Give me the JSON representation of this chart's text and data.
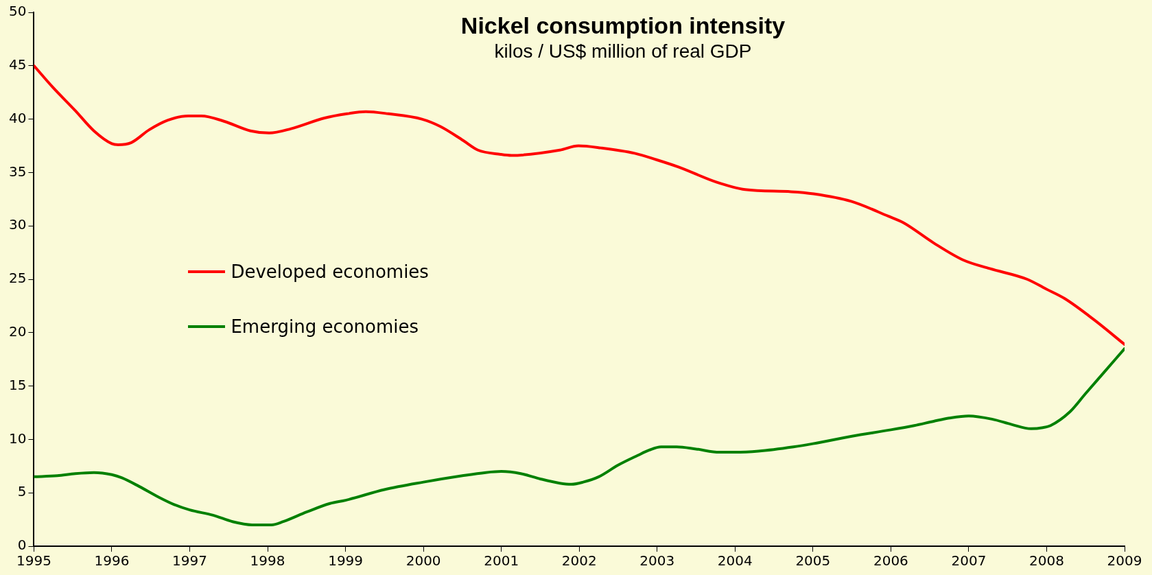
{
  "chart_data": {
    "type": "line",
    "title": "Nickel consumption intensity",
    "subtitle": "kilos / US$ million of real GDP",
    "xlim": [
      1995,
      2009
    ],
    "xticks": [
      1995,
      1996,
      1997,
      1998,
      1999,
      2000,
      2001,
      2002,
      2003,
      2004,
      2005,
      2006,
      2007,
      2008,
      2009
    ],
    "ylim": [
      0,
      50
    ],
    "yticks": [
      0,
      5,
      10,
      15,
      20,
      25,
      30,
      35,
      40,
      45,
      50
    ],
    "grid": false,
    "legend": "left",
    "marker": "none",
    "line_style": "solid",
    "series": [
      {
        "name": "Developed economies",
        "color": "#ff0000",
        "x": [
          1995,
          1995.24,
          1995.53,
          1995.77,
          1996,
          1996.08,
          1996.25,
          1996.48,
          1996.72,
          1996.98,
          1997.15,
          1997.44,
          1997.78,
          1998.02,
          1998.3,
          1998.73,
          1999.02,
          1999.26,
          1999.55,
          1999.98,
          2000.22,
          2000.51,
          2000.7,
          2000.99,
          2001.13,
          2001.75,
          2001.99,
          2002.28,
          2002.71,
          2002.99,
          2003.28,
          2003.76,
          2004.13,
          2004.72,
          2005.01,
          2005.49,
          2005.97,
          2006.16,
          2006.55,
          2006.93,
          2007.27,
          2007.75,
          2007.99,
          2008.23,
          2008.61,
          2009
        ],
        "values": [
          45,
          43,
          40.8,
          38.9,
          37.7,
          37.6,
          37.8,
          39,
          39.9,
          40.3,
          40.3,
          39.8,
          38.9,
          38.7,
          39.1,
          40.1,
          40.5,
          40.7,
          40.5,
          40,
          39.3,
          38,
          37.1,
          36.7,
          36.6,
          37.1,
          37.5,
          37.3,
          36.8,
          36.2,
          35.5,
          34.1,
          33.4,
          33.2,
          33,
          32.3,
          30.9,
          30.3,
          28.4,
          26.8,
          26,
          25,
          24.1,
          23.2,
          21.2,
          18.9
        ]
      },
      {
        "name": "Emerging economies",
        "color": "#008000",
        "x": [
          1995,
          1995.3,
          1995.53,
          1995.77,
          1996,
          1996.13,
          1996.35,
          1996.6,
          1996.8,
          1997,
          1997.3,
          1997.55,
          1997.8,
          1998.05,
          1998.2,
          1998.5,
          1998.8,
          1999,
          1999.5,
          2000,
          2000.5,
          2000.8,
          2001,
          2001.25,
          2001.5,
          2001.75,
          2001.9,
          2002.05,
          2002.25,
          2002.5,
          2002.75,
          2002.9,
          2003.05,
          2003.25,
          2003.5,
          2003.8,
          2004,
          2004.3,
          2004.75,
          2005,
          2005.5,
          2006,
          2006.3,
          2006.55,
          2006.75,
          2007,
          2007.3,
          2007.55,
          2007.8,
          2007.95,
          2008.05,
          2008.3,
          2008.5,
          2008.75,
          2009
        ],
        "values": [
          6.5,
          6.6,
          6.8,
          6.9,
          6.7,
          6.4,
          5.6,
          4.6,
          3.9,
          3.4,
          2.9,
          2.3,
          2,
          2,
          2.3,
          3.2,
          4,
          4.3,
          5.3,
          6,
          6.6,
          6.9,
          7,
          6.8,
          6.3,
          5.9,
          5.8,
          6,
          6.5,
          7.6,
          8.5,
          9,
          9.3,
          9.3,
          9.1,
          8.8,
          8.8,
          8.9,
          9.3,
          9.6,
          10.3,
          10.9,
          11.3,
          11.7,
          12,
          12.2,
          11.9,
          11.4,
          11,
          11.1,
          11.3,
          12.6,
          14.3,
          16.4,
          18.5
        ]
      }
    ]
  }
}
